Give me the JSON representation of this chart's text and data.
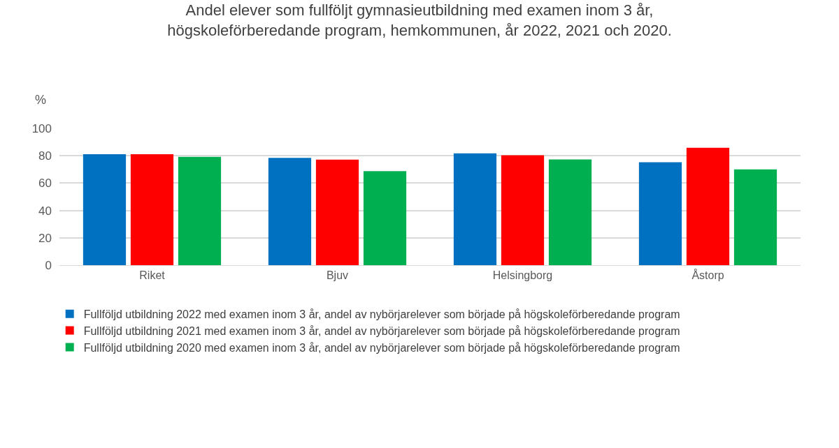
{
  "chart_data": {
    "type": "bar",
    "title": "Andel elever som fullföljt gymnasieutbildning med examen inom 3 år, högskoleförberedande program, hemkommunen, år 2022, 2021 och 2020.",
    "ylabel": "%",
    "categories": [
      "Riket",
      "Bjuv",
      "Helsingborg",
      "Åstorp"
    ],
    "series": [
      {
        "name": "Fullföljd utbildning 2022 med examen inom 3 år, andel av nybörjarelever som började på högskoleförberedande program",
        "color": "#0070c0",
        "values": [
          81.1,
          78.5,
          81.8,
          75.3
        ]
      },
      {
        "name": "Fullföljd utbildning 2021 med examen inom 3 år, andel av nybörjarelever som började på högskoleförberedande program",
        "color": "#ff0000",
        "values": [
          81.1,
          77.2,
          80.4,
          85.8
        ]
      },
      {
        "name": "Fullföljd utbildning 2020 med examen inom 3 år, andel av nybörjarelever som började på högskoleförberedande program",
        "color": "#00b050",
        "values": [
          79.2,
          68.7,
          77.3,
          70.0
        ]
      }
    ],
    "ylim": [
      0,
      100
    ],
    "yticks": [
      0,
      20,
      40,
      60,
      80,
      100
    ],
    "grid": "y",
    "legend": "bottom"
  }
}
